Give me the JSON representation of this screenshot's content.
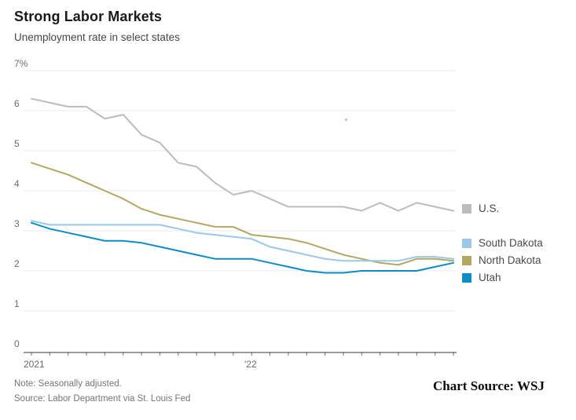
{
  "header": {
    "title": "Strong Labor Markets",
    "subtitle": "Unemployment rate in select states"
  },
  "footer": {
    "note": "Note: Seasonally adjusted.",
    "source": "Source: Labor Department via St. Louis Fed",
    "attribution": "Chart Source: WSJ"
  },
  "colors": {
    "us_line": "#bcbcbc",
    "south_dakota_line": "#9bc8e8",
    "north_dakota_line": "#b3a764",
    "utah_line": "#0d8cc6",
    "gridline": "#e8e8e8",
    "axis_line": "#9b9b9b",
    "tick_mark": "#6f6f6f",
    "axis_text": "#6b6b6b"
  },
  "chart_data": {
    "type": "line",
    "title": "Strong Labor Markets",
    "subtitle": "Unemployment rate in select states",
    "xlabel": "",
    "ylabel": "Unemployment rate (%)",
    "ylim": [
      0,
      7
    ],
    "grid": true,
    "legend_position": "right",
    "x": [
      "Jan 2021",
      "Feb 2021",
      "Mar 2021",
      "Apr 2021",
      "May 2021",
      "Jun 2021",
      "Jul 2021",
      "Aug 2021",
      "Sep 2021",
      "Oct 2021",
      "Nov 2021",
      "Dec 2021",
      "Jan 2022",
      "Feb 2022",
      "Mar 2022",
      "Apr 2022",
      "May 2022",
      "Jun 2022",
      "Jul 2022",
      "Aug 2022",
      "Sep 2022",
      "Oct 2022",
      "Nov 2022",
      "Dec 2022"
    ],
    "x_axis": {
      "year_labels": [
        {
          "text": "2021"
        },
        {
          "text": "'22"
        }
      ]
    },
    "y_axis": {
      "ticks": [
        {
          "value": 7,
          "label": "7%"
        },
        {
          "value": 6,
          "label": "6"
        },
        {
          "value": 5,
          "label": "5"
        },
        {
          "value": 4,
          "label": "4"
        },
        {
          "value": 3,
          "label": "3"
        },
        {
          "value": 2,
          "label": "2"
        },
        {
          "value": 1,
          "label": "1"
        },
        {
          "value": 0,
          "label": "0"
        }
      ]
    },
    "series": [
      {
        "name": "U.S.",
        "color": "#bcbcbc",
        "values": [
          6.3,
          6.2,
          6.1,
          6.1,
          5.8,
          5.9,
          5.4,
          5.2,
          4.7,
          4.6,
          4.2,
          3.9,
          4.0,
          3.8,
          3.6,
          3.6,
          3.6,
          3.6,
          3.5,
          3.7,
          3.5,
          3.7,
          3.6,
          3.5
        ]
      },
      {
        "name": "South Dakota",
        "color": "#9bc8e8",
        "values": [
          3.25,
          3.15,
          3.15,
          3.15,
          3.15,
          3.15,
          3.15,
          3.15,
          3.05,
          2.95,
          2.9,
          2.85,
          2.8,
          2.6,
          2.5,
          2.4,
          2.3,
          2.25,
          2.25,
          2.25,
          2.25,
          2.35,
          2.35,
          2.3
        ]
      },
      {
        "name": "North Dakota",
        "color": "#b3a764",
        "values": [
          4.7,
          4.55,
          4.4,
          4.2,
          4.0,
          3.8,
          3.55,
          3.4,
          3.3,
          3.2,
          3.1,
          3.1,
          2.9,
          2.85,
          2.8,
          2.7,
          2.55,
          2.4,
          2.3,
          2.2,
          2.15,
          2.3,
          2.3,
          2.25
        ]
      },
      {
        "name": "Utah",
        "color": "#0d8cc6",
        "values": [
          3.2,
          3.05,
          2.95,
          2.85,
          2.75,
          2.75,
          2.7,
          2.6,
          2.5,
          2.4,
          2.3,
          2.3,
          2.3,
          2.2,
          2.1,
          2.0,
          1.95,
          1.95,
          2.0,
          2.0,
          2.0,
          2.0,
          2.1,
          2.2
        ]
      }
    ]
  }
}
